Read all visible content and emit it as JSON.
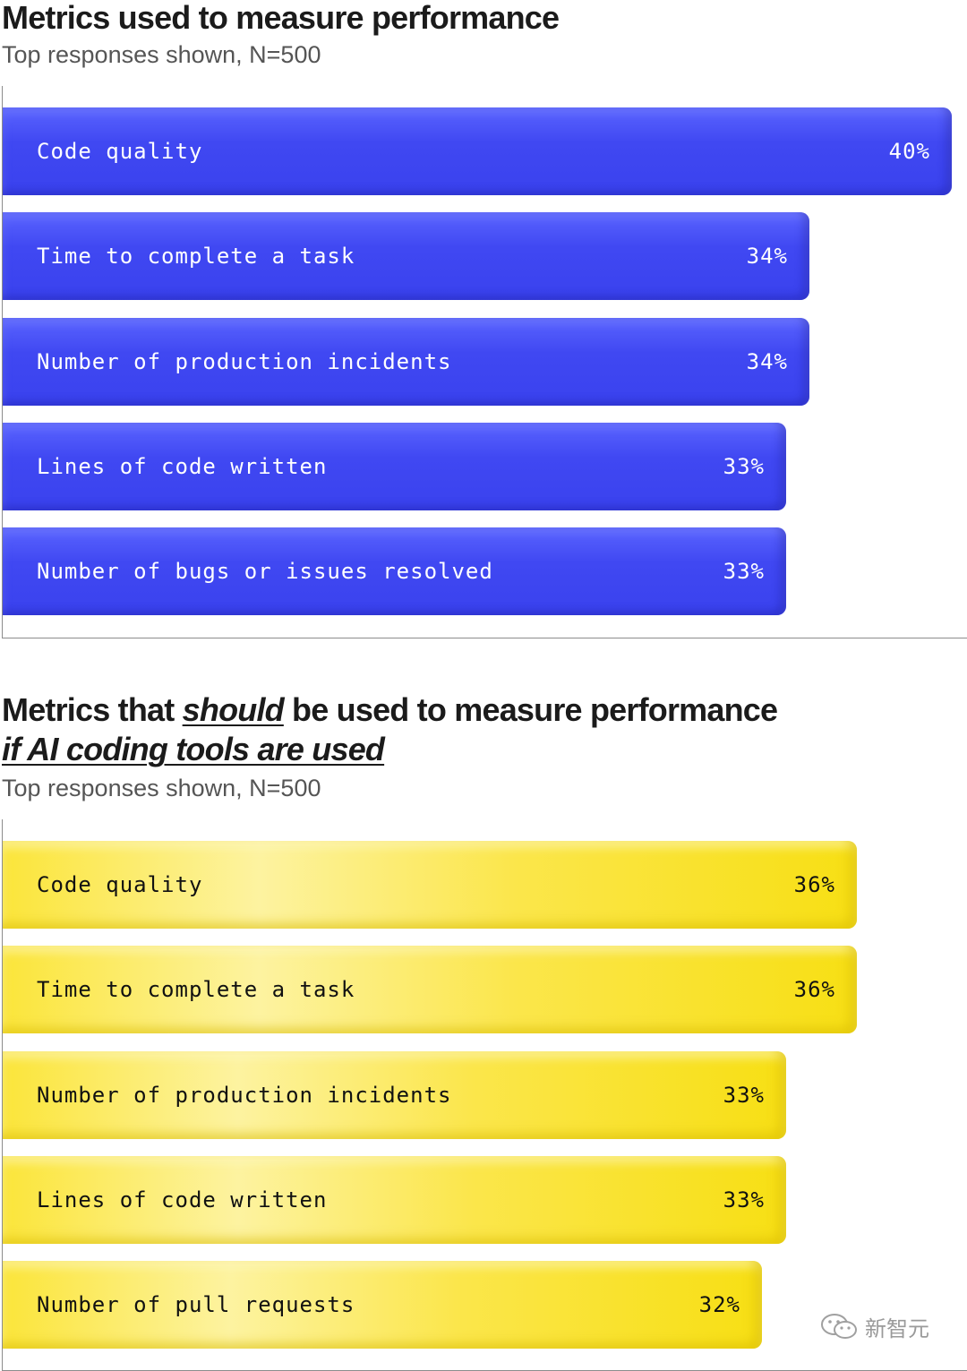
{
  "chart_data": [
    {
      "type": "bar",
      "orientation": "horizontal",
      "title": "Metrics used to measure performance",
      "subtitle": "Top responses shown, N=500",
      "categories": [
        "Code quality",
        "Time to complete a task",
        "Number of production incidents",
        "Lines of code written",
        "Number of bugs or issues resolved"
      ],
      "values": [
        40,
        34,
        34,
        33,
        33
      ],
      "value_labels": [
        "40%",
        "34%",
        "34%",
        "33%",
        "33%"
      ],
      "unit": "%",
      "xlim": [
        0,
        40
      ],
      "color": "#3f47f0",
      "grid": false
    },
    {
      "type": "bar",
      "orientation": "horizontal",
      "title_parts": [
        "Metrics that ",
        "should",
        " be used to measure performance",
        "if AI coding tools are used"
      ],
      "subtitle": "Top responses shown, N=500",
      "categories": [
        "Code quality",
        "Time to complete a task",
        "Number of production incidents",
        "Lines of code written",
        "Number of pull requests"
      ],
      "values": [
        36,
        36,
        33,
        33,
        32
      ],
      "value_labels": [
        "36%",
        "36%",
        "33%",
        "33%",
        "32%"
      ],
      "unit": "%",
      "xlim": [
        0,
        40
      ],
      "color": "#f8e11c",
      "grid": false
    }
  ],
  "watermark": "新智元",
  "watermark_icon": "wechat-icon"
}
